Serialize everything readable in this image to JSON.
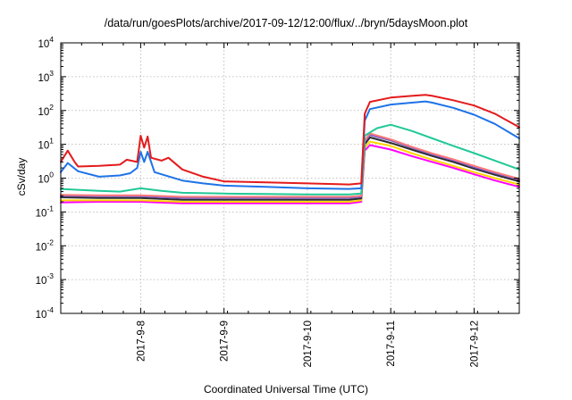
{
  "chart_data": {
    "type": "line",
    "title": "/data/run/goesPlots/archive/2017-09-12/12:00/flux/../bryn/5daysMoon.plot",
    "xlabel": "Coordinated Universal Time (UTC)",
    "ylabel": "cSv/day",
    "yscale": "log",
    "ylim": [
      0.0001,
      10000
    ],
    "xlim": [
      "2017-09-07T01:00",
      "2017-09-12T13:00"
    ],
    "grid": true,
    "legend": "none",
    "x_ticks": [
      {
        "x": "2017-09-08T00:00",
        "label": "2017-9-8"
      },
      {
        "x": "2017-09-09T00:00",
        "label": "2017-9-9"
      },
      {
        "x": "2017-09-10T00:00",
        "label": "2017-9-10"
      },
      {
        "x": "2017-09-11T00:00",
        "label": "2017-9-11"
      },
      {
        "x": "2017-09-12T00:00",
        "label": "2017-9-12"
      }
    ],
    "y_ticks": [
      {
        "value": 0.0001,
        "base": "10",
        "exp": "-4"
      },
      {
        "value": 0.001,
        "base": "10",
        "exp": "-3"
      },
      {
        "value": 0.01,
        "base": "10",
        "exp": "-2"
      },
      {
        "value": 0.1,
        "base": "10",
        "exp": "-1"
      },
      {
        "value": 1,
        "base": "10",
        "exp": "0"
      },
      {
        "value": 10,
        "base": "10",
        "exp": "1"
      },
      {
        "value": 100,
        "base": "10",
        "exp": "2"
      },
      {
        "value": 1000,
        "base": "10",
        "exp": "3"
      },
      {
        "value": 10000,
        "base": "10",
        "exp": "4"
      }
    ],
    "series": [
      {
        "color": "#ff00ff",
        "points": [
          [
            "2017-09-07T01:00",
            0.19
          ],
          [
            "2017-09-07T12:00",
            0.2
          ],
          [
            "2017-09-08T00:00",
            0.2
          ],
          [
            "2017-09-08T12:00",
            0.18
          ],
          [
            "2017-09-09T00:00",
            0.18
          ],
          [
            "2017-09-09T12:00",
            0.18
          ],
          [
            "2017-09-10T00:00",
            0.18
          ],
          [
            "2017-09-10T12:00",
            0.18
          ],
          [
            "2017-09-10T15:30",
            0.2
          ],
          [
            "2017-09-10T16:30",
            6.5
          ],
          [
            "2017-09-10T18:00",
            9.5
          ],
          [
            "2017-09-11T00:00",
            7
          ],
          [
            "2017-09-11T06:00",
            4.5
          ],
          [
            "2017-09-11T12:00",
            3
          ],
          [
            "2017-09-11T18:00",
            2
          ],
          [
            "2017-09-12T00:00",
            1.3
          ],
          [
            "2017-09-12T06:00",
            0.85
          ],
          [
            "2017-09-12T13:00",
            0.55
          ]
        ]
      },
      {
        "color": "#ffd400",
        "points": [
          [
            "2017-09-07T01:00",
            0.22
          ],
          [
            "2017-09-07T12:00",
            0.22
          ],
          [
            "2017-09-08T00:00",
            0.22
          ],
          [
            "2017-09-08T12:00",
            0.2
          ],
          [
            "2017-09-09T00:00",
            0.2
          ],
          [
            "2017-09-09T12:00",
            0.2
          ],
          [
            "2017-09-10T00:00",
            0.2
          ],
          [
            "2017-09-10T12:00",
            0.2
          ],
          [
            "2017-09-10T15:30",
            0.22
          ],
          [
            "2017-09-10T16:30",
            8
          ],
          [
            "2017-09-10T18:00",
            12
          ],
          [
            "2017-09-11T00:00",
            9
          ],
          [
            "2017-09-11T06:00",
            5.5
          ],
          [
            "2017-09-11T12:00",
            3.5
          ],
          [
            "2017-09-11T18:00",
            2.3
          ],
          [
            "2017-09-12T00:00",
            1.5
          ],
          [
            "2017-09-12T06:00",
            1
          ],
          [
            "2017-09-12T13:00",
            0.65
          ]
        ]
      },
      {
        "color": "#2b2b2b",
        "points": [
          [
            "2017-09-07T01:00",
            0.27
          ],
          [
            "2017-09-07T12:00",
            0.26
          ],
          [
            "2017-09-08T00:00",
            0.26
          ],
          [
            "2017-09-08T12:00",
            0.23
          ],
          [
            "2017-09-09T00:00",
            0.23
          ],
          [
            "2017-09-09T12:00",
            0.23
          ],
          [
            "2017-09-10T00:00",
            0.23
          ],
          [
            "2017-09-10T12:00",
            0.23
          ],
          [
            "2017-09-10T15:30",
            0.25
          ],
          [
            "2017-09-10T16:30",
            10
          ],
          [
            "2017-09-10T18:00",
            16
          ],
          [
            "2017-09-11T00:00",
            11
          ],
          [
            "2017-09-11T06:00",
            7
          ],
          [
            "2017-09-11T12:00",
            4.5
          ],
          [
            "2017-09-11T18:00",
            3
          ],
          [
            "2017-09-12T00:00",
            1.9
          ],
          [
            "2017-09-12T06:00",
            1.25
          ],
          [
            "2017-09-12T13:00",
            0.8
          ]
        ]
      },
      {
        "color": "#7a5cc8",
        "points": [
          [
            "2017-09-07T01:00",
            0.3
          ],
          [
            "2017-09-07T12:00",
            0.29
          ],
          [
            "2017-09-08T00:00",
            0.29
          ],
          [
            "2017-09-08T12:00",
            0.26
          ],
          [
            "2017-09-09T00:00",
            0.26
          ],
          [
            "2017-09-09T12:00",
            0.26
          ],
          [
            "2017-09-10T00:00",
            0.26
          ],
          [
            "2017-09-10T12:00",
            0.26
          ],
          [
            "2017-09-10T15:30",
            0.28
          ],
          [
            "2017-09-10T16:30",
            12
          ],
          [
            "2017-09-10T18:00",
            19
          ],
          [
            "2017-09-11T00:00",
            13
          ],
          [
            "2017-09-11T06:00",
            8
          ],
          [
            "2017-09-11T12:00",
            5
          ],
          [
            "2017-09-11T18:00",
            3.4
          ],
          [
            "2017-09-12T00:00",
            2.1
          ],
          [
            "2017-09-12T06:00",
            1.4
          ],
          [
            "2017-09-12T13:00",
            0.9
          ]
        ]
      },
      {
        "color": "#ff7a7a",
        "points": [
          [
            "2017-09-07T01:00",
            0.32
          ],
          [
            "2017-09-07T12:00",
            0.31
          ],
          [
            "2017-09-08T00:00",
            0.31
          ],
          [
            "2017-09-08T12:00",
            0.28
          ],
          [
            "2017-09-09T00:00",
            0.28
          ],
          [
            "2017-09-09T12:00",
            0.28
          ],
          [
            "2017-09-10T00:00",
            0.28
          ],
          [
            "2017-09-10T12:00",
            0.28
          ],
          [
            "2017-09-10T15:30",
            0.3
          ],
          [
            "2017-09-10T16:30",
            13
          ],
          [
            "2017-09-10T18:00",
            21
          ],
          [
            "2017-09-11T00:00",
            14
          ],
          [
            "2017-09-11T06:00",
            8.5
          ],
          [
            "2017-09-11T12:00",
            5.4
          ],
          [
            "2017-09-11T18:00",
            3.6
          ],
          [
            "2017-09-12T00:00",
            2.3
          ],
          [
            "2017-09-12T06:00",
            1.5
          ],
          [
            "2017-09-12T13:00",
            0.95
          ]
        ]
      },
      {
        "color": "#20c997",
        "points": [
          [
            "2017-09-07T01:00",
            0.48
          ],
          [
            "2017-09-07T06:00",
            0.45
          ],
          [
            "2017-09-07T12:00",
            0.42
          ],
          [
            "2017-09-07T18:00",
            0.4
          ],
          [
            "2017-09-08T00:00",
            0.5
          ],
          [
            "2017-09-08T06:00",
            0.42
          ],
          [
            "2017-09-08T12:00",
            0.37
          ],
          [
            "2017-09-09T00:00",
            0.35
          ],
          [
            "2017-09-09T12:00",
            0.34
          ],
          [
            "2017-09-10T00:00",
            0.33
          ],
          [
            "2017-09-10T12:00",
            0.33
          ],
          [
            "2017-09-10T15:30",
            0.35
          ],
          [
            "2017-09-10T16:30",
            18
          ],
          [
            "2017-09-10T20:00",
            30
          ],
          [
            "2017-09-11T00:00",
            38
          ],
          [
            "2017-09-11T06:00",
            25
          ],
          [
            "2017-09-11T12:00",
            15
          ],
          [
            "2017-09-11T18:00",
            9
          ],
          [
            "2017-09-12T00:00",
            5.5
          ],
          [
            "2017-09-12T06:00",
            3.3
          ],
          [
            "2017-09-12T13:00",
            1.8
          ]
        ]
      },
      {
        "color": "#1e73e8",
        "points": [
          [
            "2017-09-07T01:00",
            1.5
          ],
          [
            "2017-09-07T03:00",
            2.8
          ],
          [
            "2017-09-07T06:00",
            1.6
          ],
          [
            "2017-09-07T12:00",
            1.1
          ],
          [
            "2017-09-07T18:00",
            1.2
          ],
          [
            "2017-09-07T21:00",
            1.4
          ],
          [
            "2017-09-07T23:00",
            2
          ],
          [
            "2017-09-08T00:00",
            6
          ],
          [
            "2017-09-08T01:00",
            3
          ],
          [
            "2017-09-08T02:00",
            6
          ],
          [
            "2017-09-08T04:00",
            1.5
          ],
          [
            "2017-09-08T06:00",
            1.3
          ],
          [
            "2017-09-08T12:00",
            0.85
          ],
          [
            "2017-09-08T18:00",
            0.7
          ],
          [
            "2017-09-09T00:00",
            0.6
          ],
          [
            "2017-09-09T12:00",
            0.55
          ],
          [
            "2017-09-10T00:00",
            0.5
          ],
          [
            "2017-09-10T12:00",
            0.48
          ],
          [
            "2017-09-10T15:30",
            0.5
          ],
          [
            "2017-09-10T16:30",
            50
          ],
          [
            "2017-09-10T18:00",
            110
          ],
          [
            "2017-09-11T00:00",
            150
          ],
          [
            "2017-09-11T06:00",
            170
          ],
          [
            "2017-09-11T10:00",
            185
          ],
          [
            "2017-09-11T12:00",
            170
          ],
          [
            "2017-09-11T18:00",
            120
          ],
          [
            "2017-09-12T00:00",
            75
          ],
          [
            "2017-09-12T06:00",
            40
          ],
          [
            "2017-09-12T13:00",
            15
          ]
        ]
      },
      {
        "color": "#e41a1c",
        "points": [
          [
            "2017-09-07T01:00",
            3
          ],
          [
            "2017-09-07T03:00",
            6.5
          ],
          [
            "2017-09-07T05:00",
            3
          ],
          [
            "2017-09-07T06:00",
            2.2
          ],
          [
            "2017-09-07T12:00",
            2.3
          ],
          [
            "2017-09-07T18:00",
            2.5
          ],
          [
            "2017-09-07T20:00",
            3.5
          ],
          [
            "2017-09-07T23:00",
            3
          ],
          [
            "2017-09-08T00:00",
            18
          ],
          [
            "2017-09-08T01:00",
            8
          ],
          [
            "2017-09-08T02:00",
            17
          ],
          [
            "2017-09-08T03:00",
            4
          ],
          [
            "2017-09-08T06:00",
            3.3
          ],
          [
            "2017-09-08T08:00",
            4
          ],
          [
            "2017-09-08T12:00",
            1.8
          ],
          [
            "2017-09-08T18:00",
            1.1
          ],
          [
            "2017-09-09T00:00",
            0.8
          ],
          [
            "2017-09-09T12:00",
            0.75
          ],
          [
            "2017-09-10T00:00",
            0.7
          ],
          [
            "2017-09-10T12:00",
            0.65
          ],
          [
            "2017-09-10T15:30",
            0.7
          ],
          [
            "2017-09-10T16:30",
            80
          ],
          [
            "2017-09-10T18:00",
            180
          ],
          [
            "2017-09-11T00:00",
            240
          ],
          [
            "2017-09-11T06:00",
            270
          ],
          [
            "2017-09-11T10:00",
            290
          ],
          [
            "2017-09-11T12:00",
            270
          ],
          [
            "2017-09-11T18:00",
            200
          ],
          [
            "2017-09-12T00:00",
            140
          ],
          [
            "2017-09-12T06:00",
            80
          ],
          [
            "2017-09-12T13:00",
            32
          ]
        ]
      }
    ]
  }
}
